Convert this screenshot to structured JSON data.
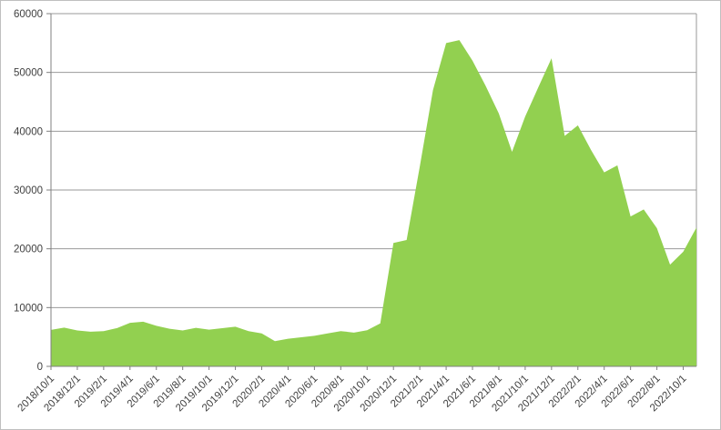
{
  "chart_data": {
    "type": "area",
    "title": "",
    "xlabel": "",
    "ylabel": "",
    "legend": "none",
    "grid": true,
    "fill_color": "#92d050",
    "gridline_color": "#999999",
    "axis_color": "#808080",
    "label_color": "#404040",
    "ylim": [
      0,
      60000
    ],
    "y_tick_step": 10000,
    "y_tick_labels": [
      "0",
      "10000",
      "20000",
      "30000",
      "40000",
      "50000",
      "60000"
    ],
    "x_tick_every": 2,
    "x_tick_labels": [
      "2018/10/1",
      "2018/12/1",
      "2019/2/1",
      "2019/4/1",
      "2019/6/1",
      "2019/8/1",
      "2019/10/1",
      "2019/12/1",
      "2020/2/1",
      "2020/4/1",
      "2020/6/1",
      "2020/8/1",
      "2020/10/1",
      "2020/12/1",
      "2021/2/1",
      "2021/4/1",
      "2021/6/1",
      "2021/8/1",
      "2021/10/1",
      "2021/12/1",
      "2022/2/1",
      "2022/4/1",
      "2022/6/1",
      "2022/8/1",
      "2022/10/1"
    ],
    "categories": [
      "2018/10/1",
      "2018/11/1",
      "2018/12/1",
      "2019/1/1",
      "2019/2/1",
      "2019/3/1",
      "2019/4/1",
      "2019/5/1",
      "2019/6/1",
      "2019/7/1",
      "2019/8/1",
      "2019/9/1",
      "2019/10/1",
      "2019/11/1",
      "2019/12/1",
      "2020/1/1",
      "2020/2/1",
      "2020/3/1",
      "2020/4/1",
      "2020/5/1",
      "2020/6/1",
      "2020/7/1",
      "2020/8/1",
      "2020/9/1",
      "2020/10/1",
      "2020/11/1",
      "2020/12/1",
      "2021/1/1",
      "2021/2/1",
      "2021/3/1",
      "2021/4/1",
      "2021/5/1",
      "2021/6/1",
      "2021/7/1",
      "2021/8/1",
      "2021/9/1",
      "2021/10/1",
      "2021/11/1",
      "2021/12/1",
      "2022/1/1",
      "2022/2/1",
      "2022/3/1",
      "2022/4/1",
      "2022/5/1",
      "2022/6/1",
      "2022/7/1",
      "2022/8/1",
      "2022/9/1",
      "2022/10/1",
      "2022/11/1"
    ],
    "values": [
      6200,
      6600,
      6100,
      5900,
      6000,
      6500,
      7400,
      7600,
      6900,
      6400,
      6100,
      6550,
      6250,
      6500,
      6750,
      6000,
      5600,
      4300,
      4700,
      4950,
      5200,
      5600,
      6000,
      5750,
      6150,
      7300,
      21000,
      21500,
      34000,
      47000,
      55000,
      55500,
      52000,
      47700,
      43000,
      36500,
      42500,
      47500,
      52400,
      39200,
      41000,
      36800,
      33000,
      34200,
      25500,
      26700,
      23500,
      17300,
      19500,
      23600
    ]
  }
}
